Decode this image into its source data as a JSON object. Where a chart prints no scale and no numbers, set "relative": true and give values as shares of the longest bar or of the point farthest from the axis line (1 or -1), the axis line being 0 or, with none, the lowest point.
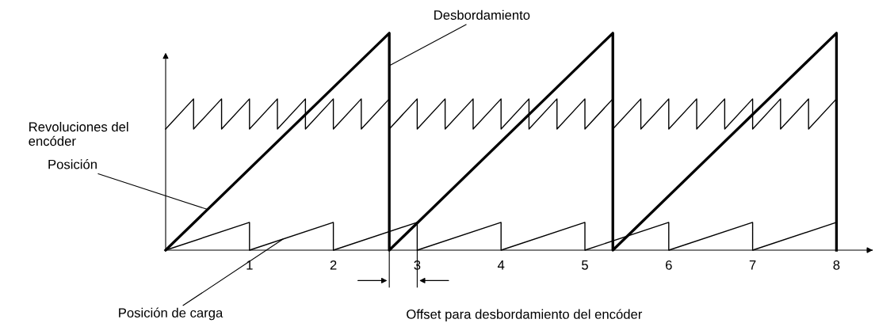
{
  "chart_data": {
    "type": "line",
    "relative": true,
    "xlim": [
      0,
      8.4
    ],
    "xticks": [
      1,
      2,
      3,
      4,
      5,
      6,
      7,
      8
    ],
    "grid": false,
    "legend": false,
    "marker": "none",
    "line_style": "solid",
    "series": [
      {
        "color": "#000000",
        "x": [
          0,
          2.667,
          2.667,
          5.333,
          5.333,
          8,
          8
        ],
        "values": [
          0,
          1,
          0,
          1,
          0,
          1,
          0
        ]
      },
      {
        "color": "#000000",
        "x": [
          0,
          1,
          1,
          2,
          2,
          3,
          3,
          4,
          4,
          5,
          5,
          6,
          6,
          7,
          7,
          8,
          8
        ],
        "values": [
          0,
          0.128,
          0,
          0.128,
          0,
          0.128,
          0,
          0.128,
          0,
          0.128,
          0,
          0.128,
          0,
          0.128,
          0,
          0.128,
          0
        ]
      },
      {
        "color": "#000000",
        "x": [
          0,
          0.333,
          0.333,
          0.667,
          0.667,
          1,
          1,
          1.333,
          1.333,
          1.667,
          1.667,
          2,
          2,
          2.333,
          2.333,
          2.667,
          2.667,
          3,
          3,
          3.333,
          3.333,
          3.667,
          3.667,
          4,
          4,
          4.333,
          4.333,
          4.667,
          4.667,
          5,
          5,
          5.333,
          5.333,
          5.667,
          5.667,
          6,
          6,
          6.333,
          6.333,
          6.667,
          6.667,
          7,
          7,
          7.333,
          7.333,
          7.667,
          7.667,
          8
        ],
        "values": [
          0.558,
          0.697,
          0.558,
          0.697,
          0.558,
          0.697,
          0.558,
          0.697,
          0.558,
          0.697,
          0.558,
          0.697,
          0.558,
          0.697,
          0.558,
          0.697,
          0.558,
          0.697,
          0.558,
          0.697,
          0.558,
          0.697,
          0.558,
          0.697,
          0.558,
          0.697,
          0.558,
          0.697,
          0.558,
          0.697,
          0.558,
          0.697,
          0.558,
          0.697,
          0.558,
          0.697,
          0.558,
          0.697,
          0.558,
          0.697,
          0.558,
          0.697,
          0.558,
          0.697,
          0.558,
          0.697,
          0.558,
          0.697
        ]
      }
    ],
    "annotations": [
      {
        "text": "Desbordamiento",
        "x": 2.667,
        "y": 0.85
      },
      "Revoluciones del\nencóder",
      {
        "text": "Posición",
        "x": 0.5,
        "y": 0.1875
      },
      {
        "text": "Posición de carga",
        "x": 1.4,
        "y": 0.051
      },
      "Offset para desbordamiento del encóder"
    ]
  }
}
